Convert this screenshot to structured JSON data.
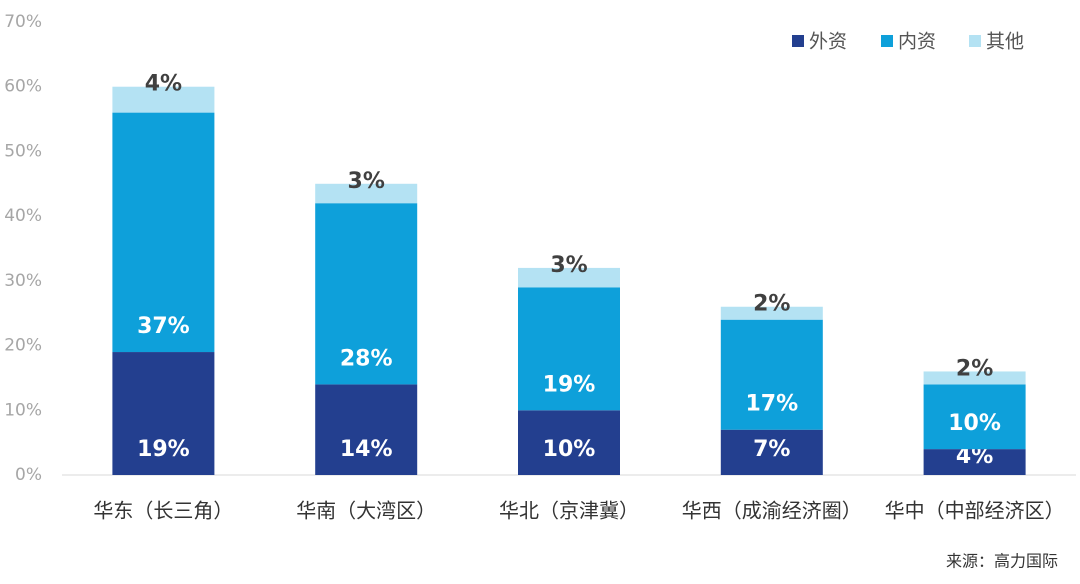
{
  "chart_data": {
    "type": "stacked_bar",
    "categories": [
      "华东（长三角）",
      "华南（大湾区）",
      "华北（京津冀）",
      "华西（成渝经济圈）",
      "华中（中部经济区）"
    ],
    "series": [
      {
        "name": "外资",
        "color": "#233f8f",
        "values": [
          19,
          14,
          10,
          7,
          4
        ],
        "value_labels": [
          "19%",
          "14%",
          "10%",
          "7%",
          "4%"
        ]
      },
      {
        "name": "内资",
        "color": "#0ea0da",
        "values": [
          37,
          28,
          19,
          17,
          10
        ],
        "value_labels": [
          "37%",
          "28%",
          "19%",
          "17%",
          "10%"
        ]
      },
      {
        "name": "其他",
        "color": "#b4e2f3",
        "values": [
          4,
          3,
          3,
          2,
          2
        ],
        "value_labels": [
          "4%",
          "3%",
          "3%",
          "2%",
          "2%"
        ]
      }
    ],
    "ylim": [
      0,
      70
    ],
    "yticks": [
      {
        "value": 0,
        "label": "0%"
      },
      {
        "value": 10,
        "label": "10%"
      },
      {
        "value": 20,
        "label": "20%"
      },
      {
        "value": 30,
        "label": "30%"
      },
      {
        "value": 40,
        "label": "40%"
      },
      {
        "value": 50,
        "label": "50%"
      },
      {
        "value": 60,
        "label": "60%"
      },
      {
        "value": 70,
        "label": "70%"
      }
    ],
    "grid": false,
    "legend": "top-right",
    "source": "来源：高力国际"
  }
}
